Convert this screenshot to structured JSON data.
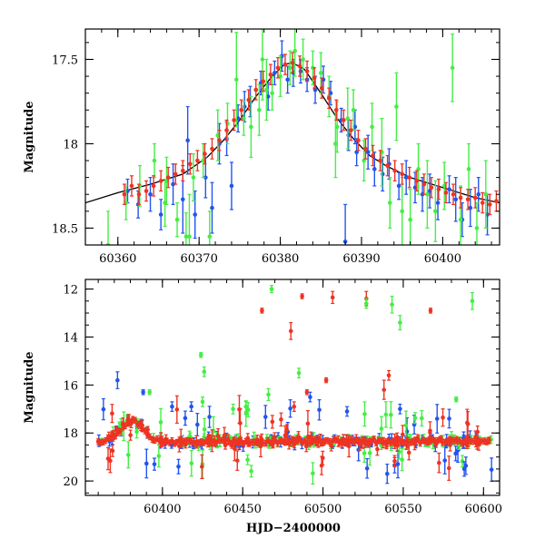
{
  "chart_data": [
    {
      "type": "scatter",
      "panel": "top",
      "xlabel": "",
      "ylabel": "Magnitude",
      "xlim": [
        60356,
        60407
      ],
      "ylim": [
        18.6,
        17.32
      ],
      "y_inverted": true,
      "x_ticks": [
        60360,
        60370,
        60380,
        60390,
        60400
      ],
      "x_tick_labels": [
        "60360",
        "60370",
        "60380",
        "60390",
        "60400"
      ],
      "y_ticks": [
        17.5,
        18,
        18.5
      ],
      "y_tick_labels": [
        "17.5",
        "18",
        "18.5"
      ],
      "model_curve": {
        "color": "#000000",
        "x": [
          60356,
          60360,
          60364,
          60368,
          60371,
          60373,
          60375,
          60377,
          60379,
          60380.5,
          60381.5,
          60383,
          60385,
          60387,
          60389,
          60391,
          60393,
          60396,
          60400,
          60404,
          60407
        ],
        "y": [
          18.35,
          18.29,
          18.24,
          18.18,
          18.08,
          17.98,
          17.86,
          17.72,
          17.6,
          17.53,
          17.52,
          17.56,
          17.7,
          17.85,
          17.97,
          18.07,
          18.13,
          18.2,
          18.26,
          18.32,
          18.35
        ]
      },
      "series": [
        {
          "color": "#2255ee",
          "points": [
            [
              60361.2,
              18.28,
              0.07
            ],
            [
              60362.5,
              18.36,
              0.08
            ],
            [
              60364.0,
              18.3,
              0.1
            ],
            [
              60365.3,
              18.42,
              0.09
            ],
            [
              60366.8,
              18.24,
              0.12
            ],
            [
              60368.0,
              18.33,
              0.2
            ],
            [
              60368.6,
              17.98,
              0.2
            ],
            [
              60369.5,
              18.42,
              0.14
            ],
            [
              60370.8,
              18.2,
              0.12
            ],
            [
              60371.6,
              18.38,
              0.15
            ],
            [
              60372.5,
              18.0,
              0.12
            ],
            [
              60373.4,
              17.97,
              0.1
            ],
            [
              60374.8,
              17.85,
              0.08
            ],
            [
              60375.6,
              17.78,
              0.09
            ],
            [
              60376.3,
              17.75,
              0.09
            ],
            [
              60377.6,
              17.64,
              0.07
            ],
            [
              60378.5,
              17.72,
              0.08
            ],
            [
              60379.3,
              17.58,
              0.07
            ],
            [
              60380.2,
              17.48,
              0.09
            ],
            [
              60380.9,
              17.62,
              0.08
            ],
            [
              60381.6,
              17.58,
              0.08
            ],
            [
              60382.5,
              17.57,
              0.07
            ],
            [
              60383.3,
              17.62,
              0.07
            ],
            [
              60384.3,
              17.68,
              0.08
            ],
            [
              60385.3,
              17.62,
              0.08
            ],
            [
              60386.2,
              17.7,
              0.07
            ],
            [
              60387.5,
              17.86,
              0.07
            ],
            [
              60388.4,
              17.95,
              0.09
            ],
            [
              60389.4,
              18.05,
              0.08
            ],
            [
              60390.8,
              18.05,
              0.1
            ],
            [
              60391.6,
              18.15,
              0.1
            ],
            [
              60392.6,
              18.18,
              0.1
            ],
            [
              60393.4,
              18.12,
              0.09
            ],
            [
              60394.6,
              18.25,
              0.08
            ],
            [
              60395.5,
              18.2,
              0.1
            ],
            [
              60396.6,
              18.26,
              0.09
            ],
            [
              60397.5,
              18.3,
              0.1
            ],
            [
              60398.4,
              18.28,
              0.1
            ],
            [
              60399.4,
              18.35,
              0.1
            ],
            [
              60400.8,
              18.27,
              0.08
            ],
            [
              60401.6,
              18.33,
              0.13
            ],
            [
              60402.4,
              18.45,
              0.1
            ],
            [
              60403.4,
              18.38,
              0.11
            ],
            [
              60404.4,
              18.3,
              0.1
            ],
            [
              60405.5,
              18.42,
              0.12
            ],
            [
              60388.0,
              18.58,
              0.22
            ],
            [
              60389.2,
              17.9,
              0.1
            ],
            [
              60374.0,
              18.25,
              0.14
            ]
          ]
        },
        {
          "color": "#44ee44",
          "points": [
            [
              60361.0,
              18.35,
              0.1
            ],
            [
              60362.7,
              18.25,
              0.12
            ],
            [
              60364.5,
              18.1,
              0.1
            ],
            [
              60365.8,
              18.35,
              0.14
            ],
            [
              60367.3,
              18.45,
              0.1
            ],
            [
              60368.4,
              18.55,
              0.14
            ],
            [
              60369.3,
              18.2,
              0.14
            ],
            [
              60370.5,
              18.1,
              0.1
            ],
            [
              60371.3,
              18.55,
              0.15
            ],
            [
              60372.3,
              17.95,
              0.15
            ],
            [
              60373.5,
              17.88,
              0.12
            ],
            [
              60374.6,
              17.62,
              0.28
            ],
            [
              60375.5,
              17.85,
              0.1
            ],
            [
              60376.4,
              17.9,
              0.18
            ],
            [
              60377.4,
              17.8,
              0.15
            ],
            [
              60378.3,
              17.68,
              0.18
            ],
            [
              60379.0,
              17.7,
              0.1
            ],
            [
              60380.0,
              17.6,
              0.12
            ],
            [
              60381.2,
              17.55,
              0.1
            ],
            [
              60381.8,
              17.45,
              0.15
            ],
            [
              60382.8,
              17.5,
              0.12
            ],
            [
              60384.0,
              17.55,
              0.1
            ],
            [
              60385.0,
              17.58,
              0.12
            ],
            [
              60386.0,
              17.72,
              0.12
            ],
            [
              60387.0,
              17.9,
              0.15
            ],
            [
              60388.3,
              17.85,
              0.18
            ],
            [
              60389.0,
              17.8,
              0.12
            ],
            [
              60390.3,
              18.1,
              0.12
            ],
            [
              60391.3,
              17.9,
              0.14
            ],
            [
              60392.5,
              18.05,
              0.2
            ],
            [
              60393.5,
              18.35,
              0.15
            ],
            [
              60395.0,
              18.4,
              0.2
            ],
            [
              60396.0,
              18.45,
              0.18
            ],
            [
              60397.0,
              18.15,
              0.15
            ],
            [
              60398.1,
              18.3,
              0.2
            ],
            [
              60399.1,
              18.4,
              0.18
            ],
            [
              60400.2,
              18.25,
              0.14
            ],
            [
              60401.2,
              17.55,
              0.2
            ],
            [
              60402.2,
              18.45,
              0.2
            ],
            [
              60403.2,
              18.15,
              0.15
            ],
            [
              60404.2,
              18.5,
              0.15
            ],
            [
              60405.3,
              18.3,
              0.2
            ],
            [
              60377.8,
              17.5,
              0.24
            ],
            [
              60386.8,
              18.0,
              0.2
            ],
            [
              60394.3,
              17.78,
              0.2
            ],
            [
              60358.8,
              18.6,
              0.2
            ],
            [
              60368.8,
              18.55,
              0.25
            ],
            [
              60366.0,
              18.22,
              0.14
            ]
          ]
        },
        {
          "color": "#ee3322",
          "points": [
            [
              60360.8,
              18.3,
              0.06
            ],
            [
              60361.7,
              18.25,
              0.06
            ],
            [
              60362.6,
              18.3,
              0.06
            ],
            [
              60363.5,
              18.28,
              0.06
            ],
            [
              60364.4,
              18.25,
              0.06
            ],
            [
              60365.3,
              18.22,
              0.06
            ],
            [
              60366.2,
              18.2,
              0.06
            ],
            [
              60367.1,
              18.18,
              0.06
            ],
            [
              60368.0,
              18.16,
              0.06
            ],
            [
              60368.9,
              18.12,
              0.06
            ],
            [
              60369.8,
              18.1,
              0.06
            ],
            [
              60370.7,
              18.06,
              0.06
            ],
            [
              60371.6,
              18.03,
              0.06
            ],
            [
              60372.5,
              17.98,
              0.06
            ],
            [
              60373.4,
              17.92,
              0.06
            ],
            [
              60374.3,
              17.86,
              0.06
            ],
            [
              60375.2,
              17.8,
              0.06
            ],
            [
              60376.1,
              17.74,
              0.06
            ],
            [
              60377.0,
              17.68,
              0.06
            ],
            [
              60377.9,
              17.63,
              0.06
            ],
            [
              60378.8,
              17.59,
              0.06
            ],
            [
              60379.7,
              17.55,
              0.06
            ],
            [
              60380.6,
              17.53,
              0.06
            ],
            [
              60381.5,
              17.52,
              0.06
            ],
            [
              60382.4,
              17.54,
              0.06
            ],
            [
              60383.3,
              17.57,
              0.06
            ],
            [
              60384.2,
              17.61,
              0.06
            ],
            [
              60385.1,
              17.67,
              0.06
            ],
            [
              60386.0,
              17.73,
              0.06
            ],
            [
              60386.9,
              17.8,
              0.06
            ],
            [
              60387.8,
              17.86,
              0.06
            ],
            [
              60388.7,
              17.92,
              0.06
            ],
            [
              60389.6,
              17.98,
              0.06
            ],
            [
              60390.5,
              18.03,
              0.06
            ],
            [
              60391.4,
              18.07,
              0.06
            ],
            [
              60392.3,
              18.1,
              0.06
            ],
            [
              60393.2,
              18.13,
              0.06
            ],
            [
              60394.1,
              18.16,
              0.06
            ],
            [
              60395.0,
              18.18,
              0.06
            ],
            [
              60395.9,
              18.2,
              0.06
            ],
            [
              60396.8,
              18.22,
              0.06
            ],
            [
              60397.7,
              18.24,
              0.06
            ],
            [
              60398.6,
              18.26,
              0.06
            ],
            [
              60399.5,
              18.27,
              0.06
            ],
            [
              60400.4,
              18.29,
              0.06
            ],
            [
              60401.3,
              18.3,
              0.06
            ],
            [
              60402.2,
              18.32,
              0.06
            ],
            [
              60403.1,
              18.33,
              0.06
            ],
            [
              60404.0,
              18.32,
              0.06
            ],
            [
              60404.9,
              18.35,
              0.06
            ],
            [
              60405.8,
              18.36,
              0.06
            ],
            [
              60406.6,
              18.34,
              0.06
            ]
          ]
        }
      ]
    },
    {
      "type": "scatter",
      "panel": "bottom",
      "xlabel": "HJD−2400000",
      "ylabel": "Magnitude",
      "xlim": [
        60352,
        60610
      ],
      "ylim": [
        20.6,
        11.6
      ],
      "y_inverted": true,
      "x_ticks": [
        60400,
        60450,
        60500,
        60550,
        60600
      ],
      "x_tick_labels": [
        "60400",
        "60450",
        "60500",
        "60550",
        "60600"
      ],
      "y_ticks": [
        12,
        14,
        16,
        18,
        20
      ],
      "y_tick_labels": [
        "12",
        "14",
        "16",
        "18",
        "20"
      ],
      "band": {
        "x_start": 60360,
        "x_end": 60605,
        "center": 18.35,
        "spread": 0.2,
        "bump_center_x": 60381,
        "bump_peak": 17.5,
        "bump_width": 10,
        "colors": [
          "#2255ee",
          "#44ee44",
          "#ee3322"
        ],
        "points_per_series": 120
      },
      "outliers": [
        {
          "color": "#ee3322",
          "points": [
            [
              60462,
              12.9,
              0.1
            ],
            [
              60487,
              12.3,
              0.1
            ],
            [
              60506,
              12.35,
              0.25
            ],
            [
              60527,
              12.4,
              0.3
            ],
            [
              60567,
              12.9,
              0.1
            ],
            [
              60480,
              13.75,
              0.35
            ],
            [
              60502,
              15.8,
              0.1
            ],
            [
              60482,
              16.9,
              0.2
            ],
            [
              60541,
              15.6,
              0.2
            ],
            [
              60538,
              16.2,
              0.4
            ],
            [
              60490,
              16.3,
              0.1
            ]
          ]
        },
        {
          "color": "#44ee44",
          "points": [
            [
              60468,
              12.0,
              0.15
            ],
            [
              60527,
              12.6,
              0.2
            ],
            [
              60543,
              12.65,
              0.35
            ],
            [
              60548,
              13.4,
              0.3
            ],
            [
              60593,
              12.5,
              0.35
            ],
            [
              60424,
              14.75,
              0.1
            ],
            [
              60426,
              15.45,
              0.2
            ],
            [
              60485,
              15.5,
              0.2
            ],
            [
              60466,
              16.4,
              0.25
            ],
            [
              60452,
              16.9,
              0.2
            ],
            [
              60425,
              16.7,
              0.2
            ],
            [
              60392,
              16.3,
              0.1
            ],
            [
              60583,
              16.6,
              0.1
            ],
            [
              60444,
              17.0,
              0.2
            ]
          ]
        },
        {
          "color": "#2255ee",
          "points": [
            [
              60372,
              15.8,
              0.35
            ],
            [
              60388,
              16.3,
              0.1
            ],
            [
              60406,
              16.9,
              0.2
            ],
            [
              60418,
              16.9,
              0.2
            ],
            [
              60492,
              16.5,
              0.2
            ],
            [
              60515,
              17.1,
              0.2
            ],
            [
              60548,
              17.0,
              0.2
            ],
            [
              60395,
              19.3,
              0.25
            ],
            [
              60410,
              19.4,
              0.3
            ],
            [
              60540,
              19.7,
              0.4
            ],
            [
              60588,
              19.5,
              0.3
            ]
          ]
        }
      ]
    }
  ]
}
